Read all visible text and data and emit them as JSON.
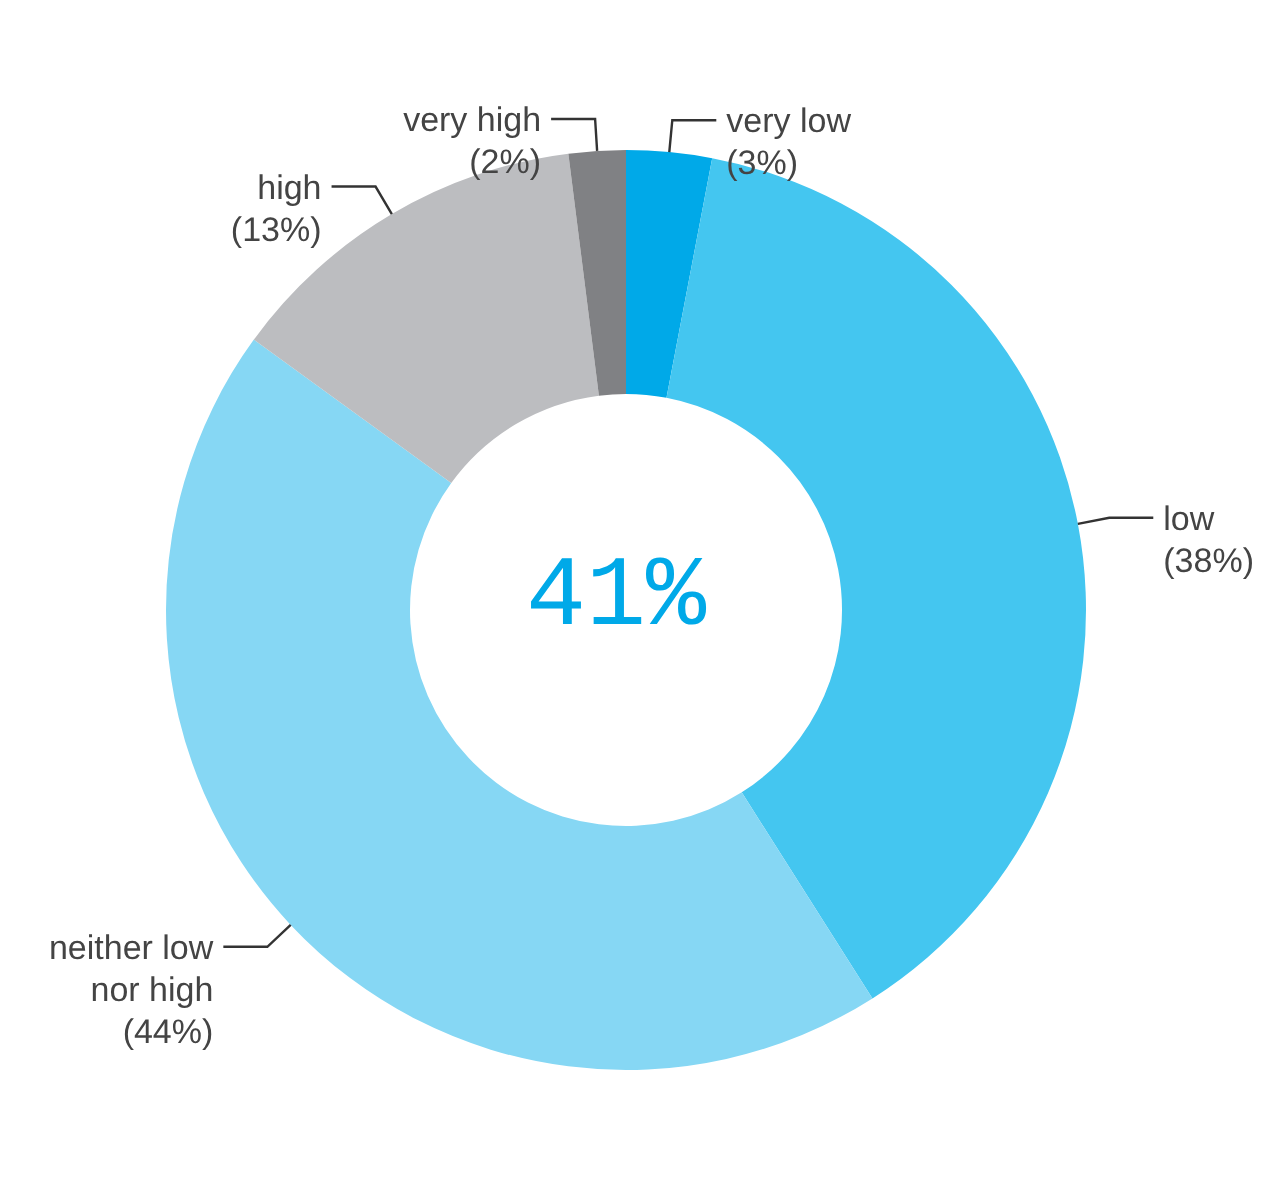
{
  "chart_data": {
    "type": "donut",
    "categories": [
      "very low",
      "low",
      "neither low nor high",
      "high",
      "very high"
    ],
    "values": [
      3,
      38,
      44,
      13,
      2
    ],
    "value_labels": [
      "(3%)",
      "(38%)",
      "(44%)",
      "(13%)",
      "(2%)"
    ],
    "colors": [
      "#00a9e8",
      "#44c6f0",
      "#86d7f4",
      "#bcbdc0",
      "#808184"
    ],
    "annotations": [
      "41%"
    ]
  }
}
